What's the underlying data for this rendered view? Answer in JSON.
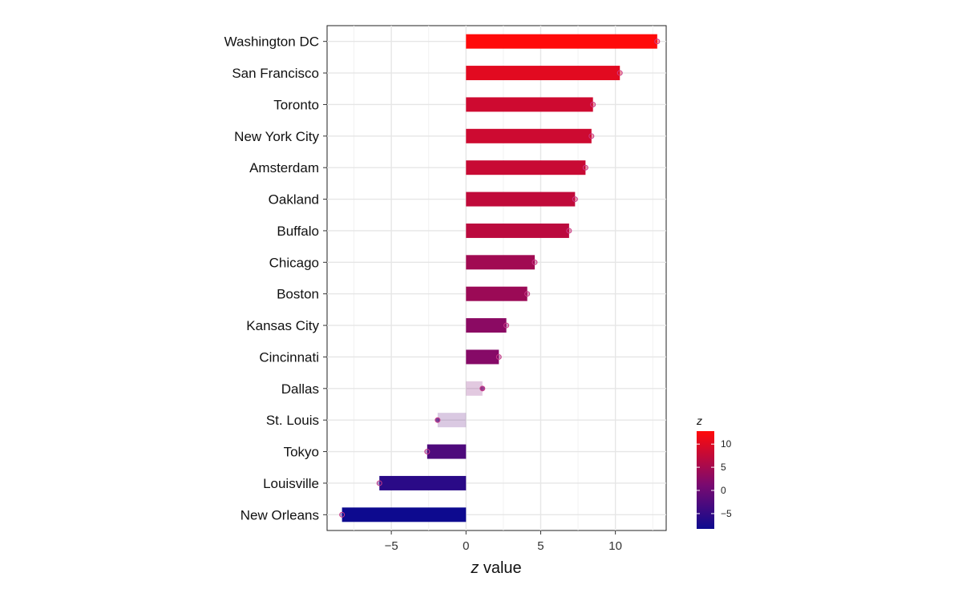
{
  "chart_data": {
    "type": "bar",
    "orientation": "horizontal",
    "categories": [
      "Washington DC",
      "San Francisco",
      "Toronto",
      "New York City",
      "Amsterdam",
      "Oakland",
      "Buffalo",
      "Chicago",
      "Boston",
      "Kansas City",
      "Cincinnati",
      "Dallas",
      "St. Louis",
      "Tokyo",
      "Louisville",
      "New Orleans"
    ],
    "values": [
      12.8,
      10.3,
      8.5,
      8.4,
      8.0,
      7.3,
      6.9,
      4.6,
      4.1,
      2.7,
      2.2,
      1.1,
      -1.9,
      -2.6,
      -5.8,
      -8.3
    ],
    "faded": [
      false,
      false,
      false,
      false,
      false,
      false,
      false,
      false,
      false,
      false,
      false,
      true,
      true,
      false,
      false,
      false
    ],
    "xlabel_italic": "z",
    "xlabel_rest": " value",
    "xlim": [
      -9.3,
      13.4
    ],
    "xticks": [
      -5,
      0,
      5,
      10
    ],
    "xtick_labels": [
      "−5",
      "0",
      "5",
      "10"
    ],
    "grid": true,
    "colorbar": {
      "title": "z",
      "range": [
        -8.3,
        12.8
      ],
      "ticks": [
        10,
        5,
        0,
        -5
      ],
      "tick_labels": [
        "10",
        "5",
        "0",
        "−5"
      ],
      "color_low": "#0d0a8f",
      "color_high": "#ff0a0a"
    },
    "legend_placement": "right"
  }
}
